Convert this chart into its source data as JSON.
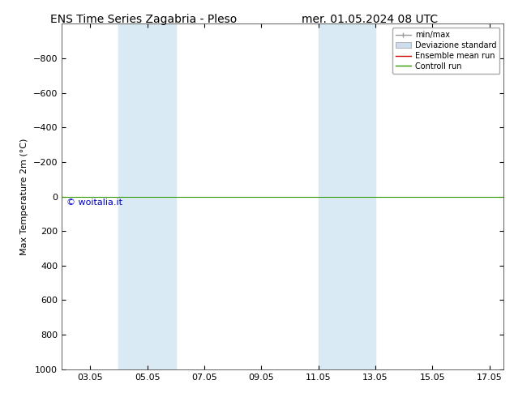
{
  "title_left": "ENS Time Series Zagabria - Pleso",
  "title_right": "mer. 01.05.2024 08 UTC",
  "ylabel": "Max Temperature 2m (°C)",
  "ylim_top": -1000,
  "ylim_bottom": 1000,
  "yticks": [
    -800,
    -600,
    -400,
    -200,
    0,
    200,
    400,
    600,
    800,
    1000
  ],
  "xtick_labels": [
    "03.05",
    "05.05",
    "07.05",
    "09.05",
    "11.05",
    "13.05",
    "15.05",
    "17.05"
  ],
  "xtick_positions": [
    3,
    5,
    7,
    9,
    11,
    13,
    15,
    17
  ],
  "xlim": [
    2.0,
    17.5
  ],
  "shade_bands": [
    {
      "start": 4.0,
      "end": 6.0
    },
    {
      "start": 11.0,
      "end": 13.0
    }
  ],
  "shade_color": "#daeaf5",
  "horizontal_line_y": 0,
  "green_line_color": "#339900",
  "red_line_color": "#cc0000",
  "watermark": "© woitalia.it",
  "watermark_color": "#0000bb",
  "legend_items": [
    "min/max",
    "Deviazione standard",
    "Ensemble mean run",
    "Controll run"
  ],
  "legend_line_color": "#999999",
  "legend_fill_color": "#ccddee",
  "legend_red": "#cc0000",
  "legend_green": "#339900",
  "background_color": "#ffffff",
  "title_fontsize": 10,
  "axis_label_fontsize": 8,
  "tick_fontsize": 8,
  "legend_fontsize": 7,
  "watermark_fontsize": 8
}
